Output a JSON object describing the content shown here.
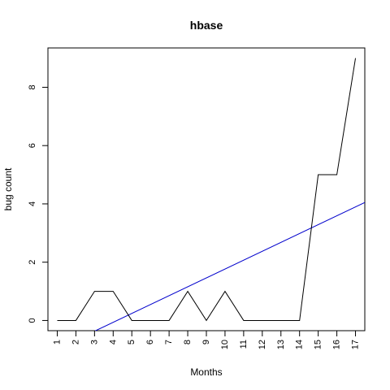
{
  "chart_data": {
    "type": "line",
    "title": "hbase",
    "xlabel": "Months",
    "ylabel": "bug count",
    "categories": [
      "1",
      "2",
      "3",
      "4",
      "5",
      "6",
      "7",
      "8",
      "9",
      "10",
      "11",
      "12",
      "13",
      "14",
      "15",
      "16",
      "17"
    ],
    "x": [
      1,
      2,
      3,
      4,
      5,
      6,
      7,
      8,
      9,
      10,
      11,
      12,
      13,
      14,
      15,
      16,
      17
    ],
    "xlim": [
      0.5,
      17.5
    ],
    "ylim": [
      -0.35,
      9.35
    ],
    "yticks": [
      0,
      2,
      4,
      6,
      8
    ],
    "grid": false,
    "series": [
      {
        "values": [
          0,
          0,
          1,
          1,
          0,
          0,
          0,
          1,
          0,
          1,
          0,
          0,
          0,
          0,
          5,
          5,
          9
        ],
        "color": "#000000"
      }
    ],
    "trendline": {
      "intercept": -1.28,
      "slope": 0.3045,
      "color": "#0000cc"
    }
  }
}
